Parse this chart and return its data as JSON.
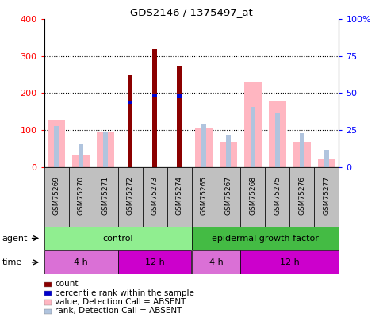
{
  "title": "GDS2146 / 1375497_at",
  "samples": [
    "GSM75269",
    "GSM75270",
    "GSM75271",
    "GSM75272",
    "GSM75273",
    "GSM75274",
    "GSM75265",
    "GSM75267",
    "GSM75268",
    "GSM75275",
    "GSM75276",
    "GSM75277"
  ],
  "count": [
    0,
    0,
    0,
    248,
    318,
    275,
    0,
    0,
    0,
    0,
    0,
    0
  ],
  "percentile_rank": [
    0,
    0,
    0,
    175,
    193,
    192,
    0,
    0,
    0,
    0,
    0,
    0
  ],
  "value_absent": [
    128,
    32,
    93,
    0,
    0,
    0,
    105,
    68,
    228,
    178,
    68,
    20
  ],
  "rank_absent": [
    110,
    62,
    96,
    0,
    0,
    0,
    115,
    88,
    162,
    148,
    91,
    47
  ],
  "ylim_left": [
    0,
    400
  ],
  "ylim_right": [
    0,
    100
  ],
  "yticks_left": [
    0,
    100,
    200,
    300,
    400
  ],
  "yticks_right": [
    0,
    25,
    50,
    75,
    100
  ],
  "agent_labels": [
    "control",
    "epidermal growth factor"
  ],
  "agent_color": "#90ee90",
  "agent_color2": "#44bb44",
  "time_labels": [
    "4 h",
    "12 h",
    "4 h",
    "12 h"
  ],
  "time_color_light": "#da70d6",
  "time_color_dark": "#cc00cc",
  "bar_color_count": "#8b0000",
  "bar_color_rank": "#0000cd",
  "bar_color_value_absent": "#ffb6c1",
  "bar_color_rank_absent": "#b0c4de",
  "bg_color": "#ffffff",
  "plot_bg_color": "#ffffff",
  "xlabel_bg": "#c0c0c0",
  "legend_items": [
    [
      "#8b0000",
      "count"
    ],
    [
      "#0000cd",
      "percentile rank within the sample"
    ],
    [
      "#ffb6c1",
      "value, Detection Call = ABSENT"
    ],
    [
      "#b0c4de",
      "rank, Detection Call = ABSENT"
    ]
  ]
}
